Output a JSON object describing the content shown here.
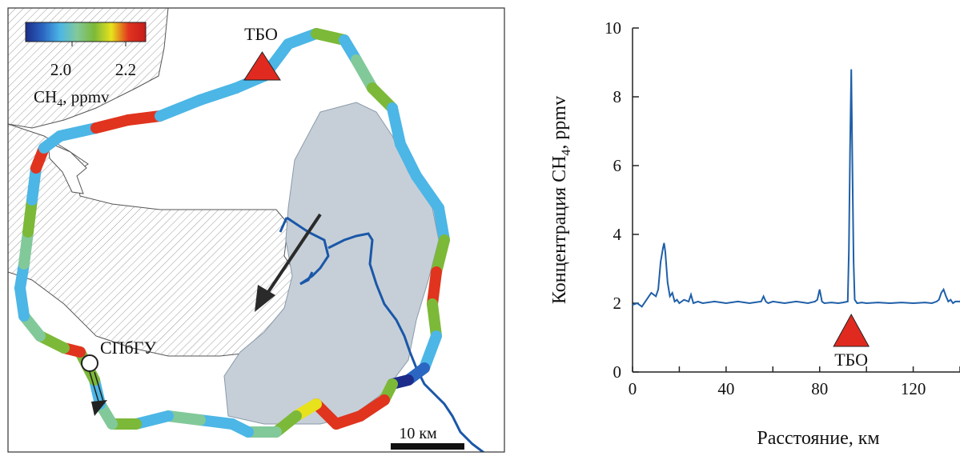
{
  "map": {
    "colorbar": {
      "min_label": "2.0",
      "max_label": "2.2",
      "title_main": "CH",
      "title_sub": "4",
      "title_unit": ", ppmv",
      "colors": [
        "#1d2c8a",
        "#2a66c2",
        "#4cb6e6",
        "#82c99a",
        "#7cb938",
        "#e8e21c",
        "#e0341e",
        "#c81c1c"
      ]
    },
    "landfill_label": "ТБО",
    "university_label": "СПбГУ",
    "scale_label": "10 км",
    "colors": {
      "water": "#c6cfd8",
      "river": "#1a57a8",
      "arrow": "#2a2a2a",
      "marker": "#e12a1f"
    }
  },
  "chart_data": {
    "type": "line",
    "xlabel": "Расстояние, км",
    "ylabel_main": "Концентрация CH",
    "ylabel_sub": "4",
    "ylabel_unit": ", ppmv",
    "xlim": [
      0,
      140
    ],
    "ylim": [
      0,
      10
    ],
    "xticks": [
      0,
      40,
      80,
      120
    ],
    "yticks": [
      0,
      2,
      4,
      6,
      8,
      10
    ],
    "grid": false,
    "line_color": "#1f5fa8",
    "marker_label": "ТБО",
    "marker_x": 93.5,
    "x": [
      0,
      2,
      4,
      6,
      8,
      10,
      11,
      12,
      13,
      13.5,
      14,
      15,
      16,
      17,
      18,
      19,
      20,
      22,
      24,
      25,
      26,
      28,
      30,
      35,
      40,
      45,
      50,
      55,
      56,
      57,
      58,
      60,
      65,
      70,
      75,
      78,
      79,
      80,
      81,
      82,
      85,
      88,
      90,
      92,
      92.5,
      93,
      93.5,
      94,
      94.5,
      95,
      96,
      98,
      100,
      105,
      110,
      115,
      120,
      125,
      128,
      130,
      131,
      132,
      133,
      134,
      135,
      136,
      137,
      138,
      140
    ],
    "y": [
      1.95,
      2.0,
      1.9,
      2.1,
      2.3,
      2.2,
      2.4,
      3.2,
      3.6,
      3.75,
      3.5,
      2.6,
      2.2,
      2.3,
      2.05,
      2.1,
      2.0,
      2.1,
      2.05,
      2.25,
      2.0,
      2.05,
      2.0,
      2.05,
      2.0,
      2.05,
      2.0,
      2.05,
      2.2,
      2.05,
      2.0,
      2.05,
      2.0,
      2.05,
      2.0,
      2.05,
      2.1,
      2.4,
      2.05,
      2.0,
      2.02,
      2.0,
      2.02,
      2.05,
      3.5,
      6.5,
      8.8,
      6.0,
      3.2,
      2.1,
      2.0,
      2.02,
      2.0,
      2.02,
      2.0,
      2.02,
      2.0,
      2.02,
      2.0,
      2.05,
      2.1,
      2.3,
      2.4,
      2.2,
      2.05,
      2.1,
      2.0,
      2.05,
      2.05
    ]
  }
}
